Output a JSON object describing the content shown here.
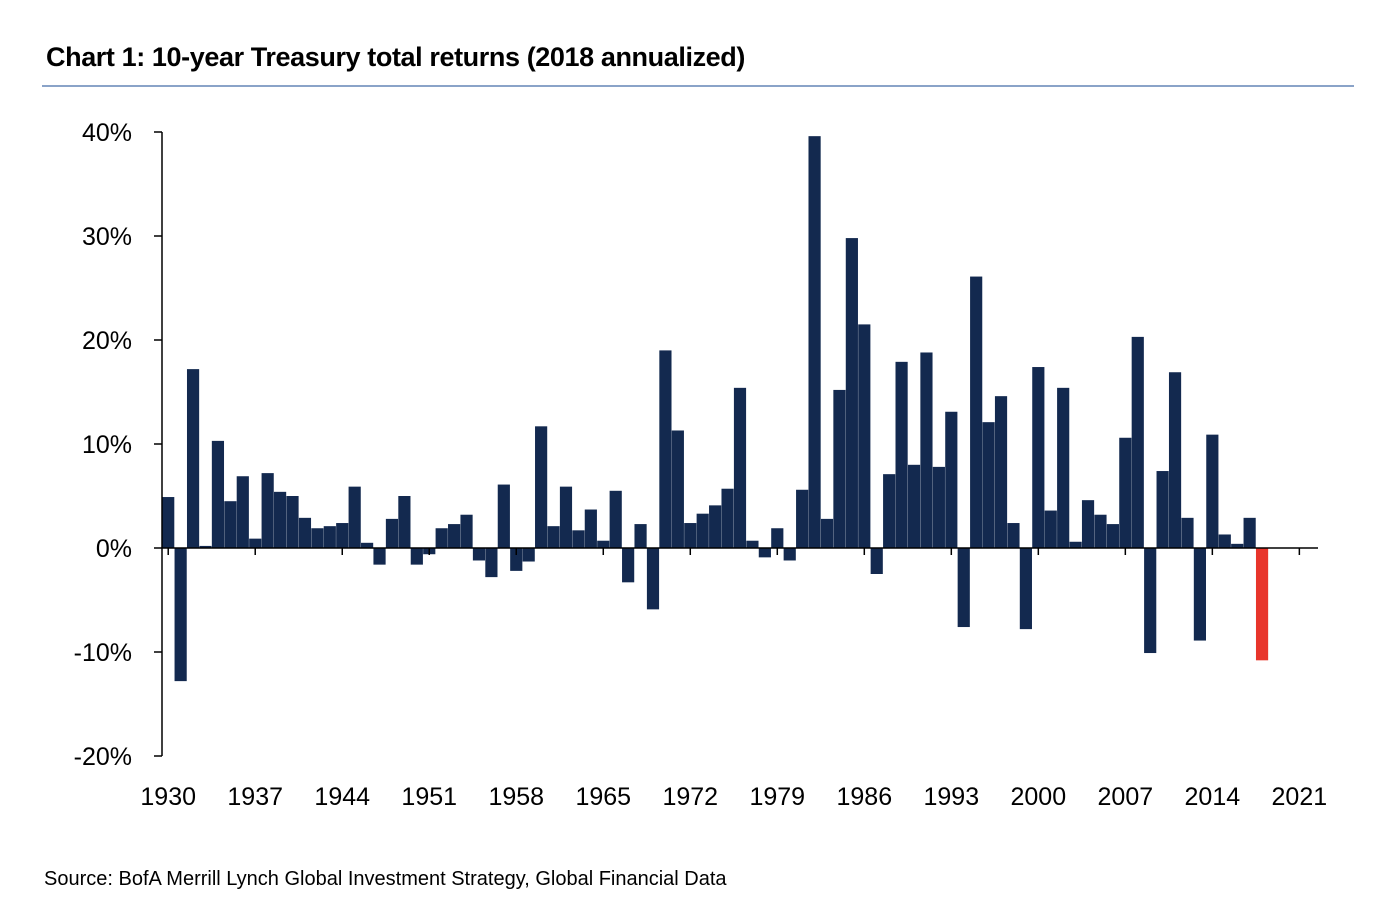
{
  "title": "Chart 1: 10-year Treasury total returns (2018 annualized)",
  "source": "Source: BofA Merrill Lynch Global Investment Strategy, Global Financial Data",
  "colors": {
    "bar": "#13294f",
    "highlight": "#e8352b",
    "axis": "#000000",
    "rule": "#8aa3c8"
  },
  "chart_data": {
    "type": "bar",
    "title": "Chart 1: 10-year Treasury total returns (2018 annualized)",
    "xlabel": "",
    "ylabel": "",
    "ylim": [
      -20,
      40
    ],
    "y_ticks": [
      40,
      30,
      20,
      10,
      0,
      -10,
      -20
    ],
    "y_tick_labels": [
      "40%",
      "30%",
      "20%",
      "10%",
      "0%",
      "-10%",
      "-20%"
    ],
    "x_ticks": [
      1930,
      1937,
      1944,
      1951,
      1958,
      1965,
      1972,
      1979,
      1986,
      1993,
      2000,
      2007,
      2014,
      2021
    ],
    "x_tick_labels": [
      "1930",
      "1937",
      "1944",
      "1951",
      "1958",
      "1965",
      "1972",
      "1979",
      "1986",
      "1993",
      "2000",
      "2007",
      "2014",
      "2021"
    ],
    "xlim": [
      1929.5,
      2022.5
    ],
    "grid": false,
    "highlight_year": 2018,
    "years": [
      1930,
      1931,
      1932,
      1933,
      1934,
      1935,
      1936,
      1937,
      1938,
      1939,
      1940,
      1941,
      1942,
      1943,
      1944,
      1945,
      1946,
      1947,
      1948,
      1949,
      1950,
      1951,
      1952,
      1953,
      1954,
      1955,
      1956,
      1957,
      1958,
      1959,
      1960,
      1961,
      1962,
      1963,
      1964,
      1965,
      1966,
      1967,
      1968,
      1969,
      1970,
      1971,
      1972,
      1973,
      1974,
      1975,
      1976,
      1977,
      1978,
      1979,
      1980,
      1981,
      1982,
      1983,
      1984,
      1985,
      1986,
      1987,
      1988,
      1989,
      1990,
      1991,
      1992,
      1993,
      1994,
      1995,
      1996,
      1997,
      1998,
      1999,
      2000,
      2001,
      2002,
      2003,
      2004,
      2005,
      2006,
      2007,
      2008,
      2009,
      2010,
      2011,
      2012,
      2013,
      2014,
      2015,
      2016,
      2017,
      2018
    ],
    "values": [
      4.9,
      -12.8,
      17.2,
      0.2,
      10.3,
      4.5,
      6.9,
      0.9,
      7.2,
      5.4,
      5.0,
      2.9,
      1.9,
      2.1,
      2.4,
      5.9,
      0.5,
      -1.6,
      2.8,
      5.0,
      -1.6,
      -0.6,
      1.9,
      2.3,
      3.2,
      -1.2,
      -2.8,
      6.1,
      -2.2,
      -1.3,
      11.7,
      2.1,
      5.9,
      1.7,
      3.7,
      0.7,
      5.5,
      -3.3,
      2.3,
      -5.9,
      19.0,
      11.3,
      2.4,
      3.3,
      4.1,
      5.7,
      15.4,
      0.7,
      -0.9,
      1.9,
      -1.2,
      5.6,
      39.6,
      2.8,
      15.2,
      29.8,
      21.5,
      -2.5,
      7.1,
      17.9,
      8.0,
      18.8,
      7.8,
      13.1,
      -7.6,
      26.1,
      12.1,
      14.6,
      2.4,
      -7.8,
      17.4,
      3.6,
      15.4,
      0.6,
      4.6,
      3.2,
      2.3,
      10.6,
      20.3,
      -10.1,
      7.4,
      16.9,
      2.9,
      -8.9,
      10.9,
      1.3,
      0.4,
      2.9,
      -10.8
    ]
  }
}
